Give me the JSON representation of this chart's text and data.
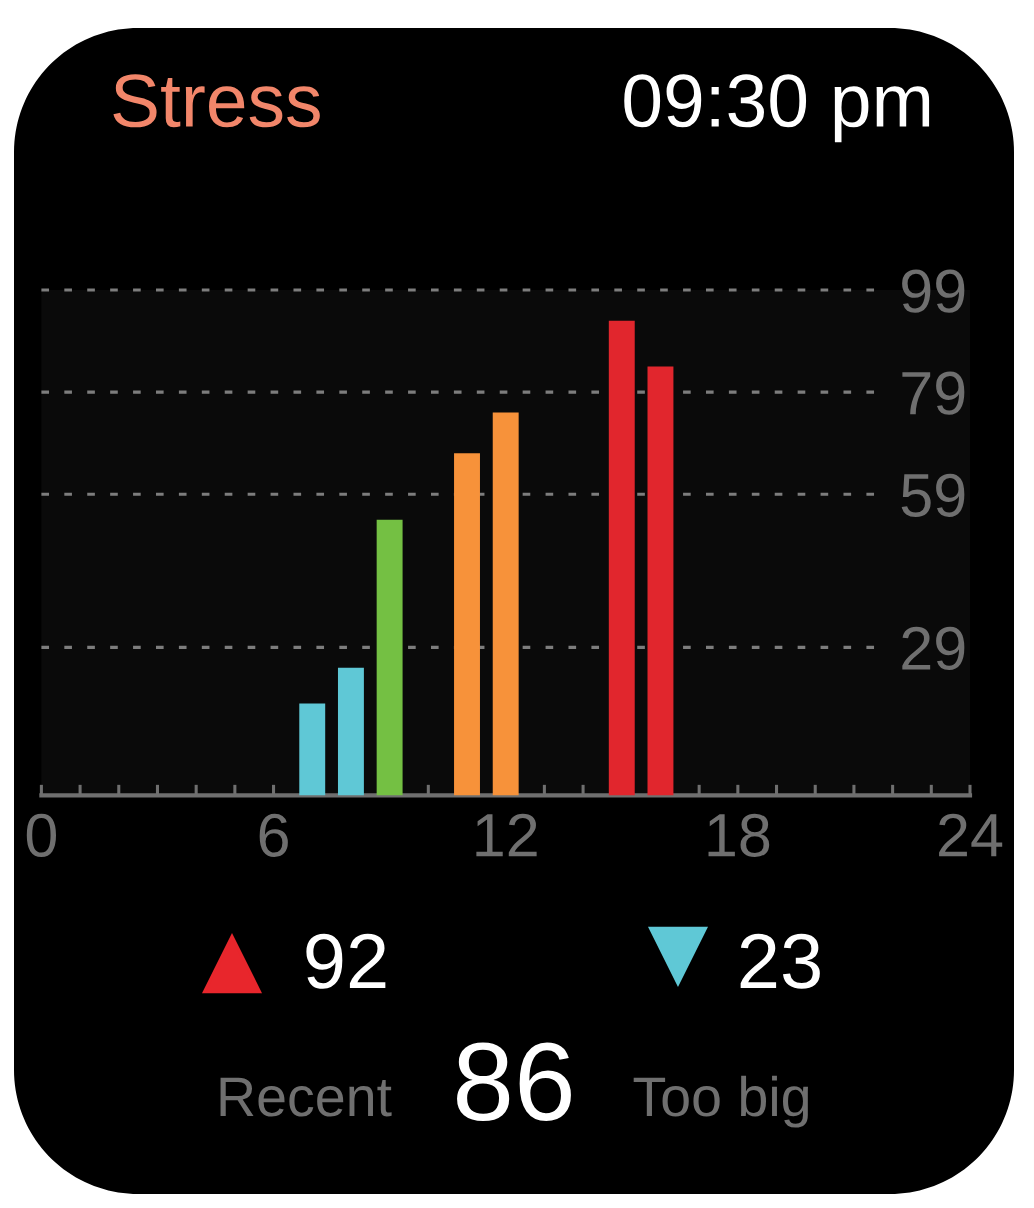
{
  "chart_data": {
    "type": "bar",
    "title": "Stress",
    "subtitle": "09:30 pm",
    "x": [
      7,
      8,
      9,
      11,
      12,
      15,
      16
    ],
    "values": [
      18,
      25,
      54,
      67,
      75,
      93,
      84
    ],
    "colors": [
      "#5fc8d6",
      "#5fc8d6",
      "#74c043",
      "#f7923a",
      "#f7923a",
      "#e1262d",
      "#e1262d"
    ],
    "xlim": [
      0,
      24
    ],
    "xticks": [
      0,
      {
        "value": 1,
        "label": null
      },
      {
        "value": 2,
        "label": null
      },
      {
        "value": 3,
        "label": null
      },
      {
        "value": 4,
        "label": null
      },
      {
        "value": 5,
        "label": null
      },
      6,
      {
        "value": 7,
        "label": null
      },
      {
        "value": 8,
        "label": null
      },
      {
        "value": 9,
        "label": null
      },
      {
        "value": 10,
        "label": null
      },
      {
        "value": 11,
        "label": null
      },
      12,
      {
        "value": 13,
        "label": null
      },
      {
        "value": 14,
        "label": null
      },
      {
        "value": 15,
        "label": null
      },
      {
        "value": 16,
        "label": null
      },
      {
        "value": 17,
        "label": null
      },
      18,
      {
        "value": 19,
        "label": null
      },
      {
        "value": 20,
        "label": null
      },
      {
        "value": 21,
        "label": null
      },
      {
        "value": 22,
        "label": null
      },
      {
        "value": 23,
        "label": null
      },
      24
    ],
    "ylim": [
      0,
      99
    ],
    "yticks": [
      29,
      59,
      79,
      99
    ],
    "grid": "y",
    "annotations": [
      "92",
      "23",
      "Recent",
      "86",
      "Too big"
    ]
  }
}
